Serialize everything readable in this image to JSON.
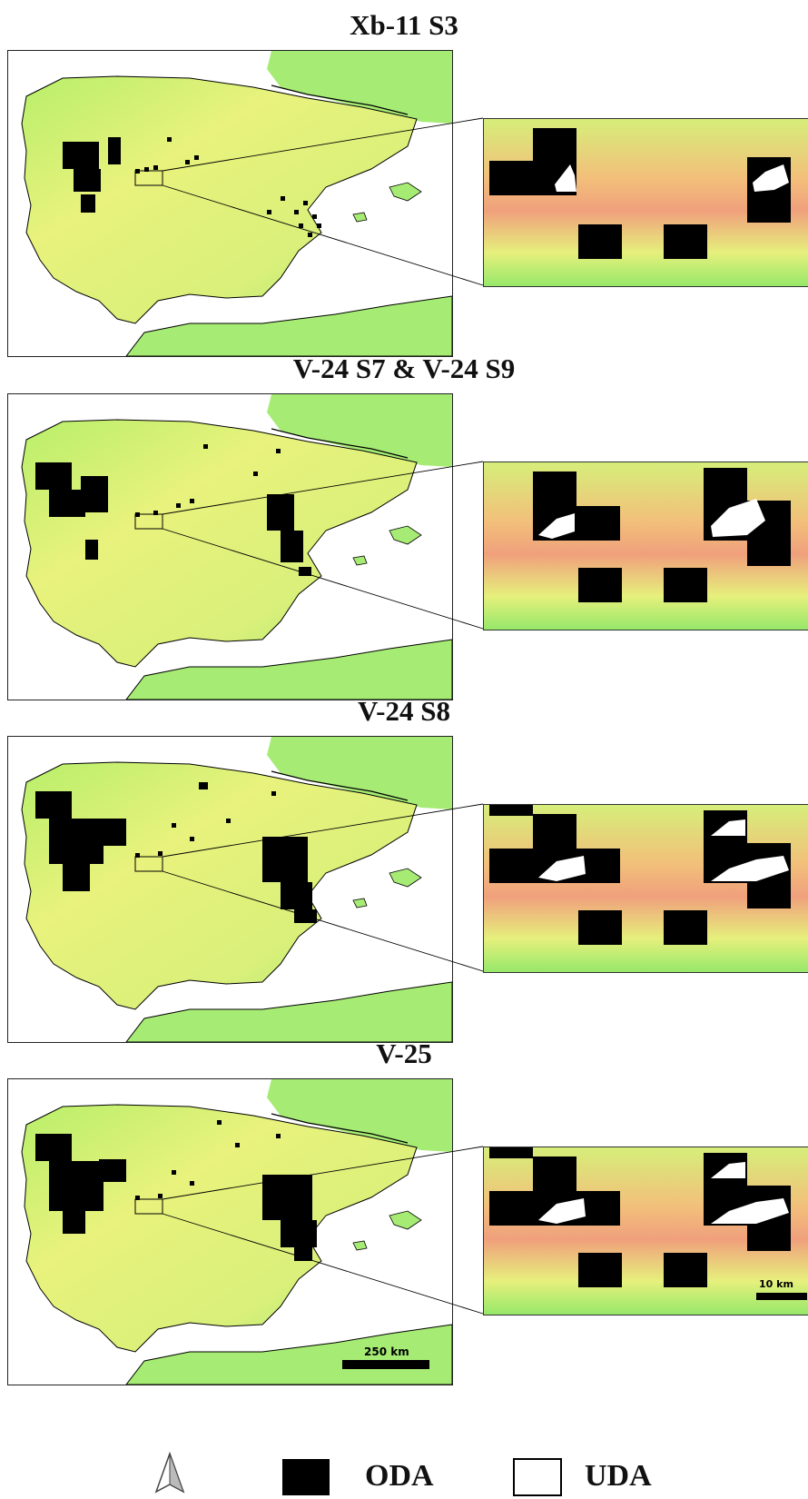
{
  "panels": [
    {
      "title": "Xb-11 S3"
    },
    {
      "title": "V-24 S7 & V-24 S9"
    },
    {
      "title": "V-24 S8"
    },
    {
      "title": "V-25"
    }
  ],
  "scalebars": {
    "main": "250 km",
    "inset": "10 km"
  },
  "legend": {
    "oda_label": "ODA",
    "uda_label": "UDA",
    "north_arrow_icon": "north-arrow-icon"
  },
  "colors": {
    "sea": "#ffffff",
    "lowland": "#8ae86a",
    "plateau": "#e6f07a",
    "mountain": "#f2a07a",
    "peak": "#f3c6cf",
    "oda": "#000000",
    "uda": "#ffffff"
  }
}
